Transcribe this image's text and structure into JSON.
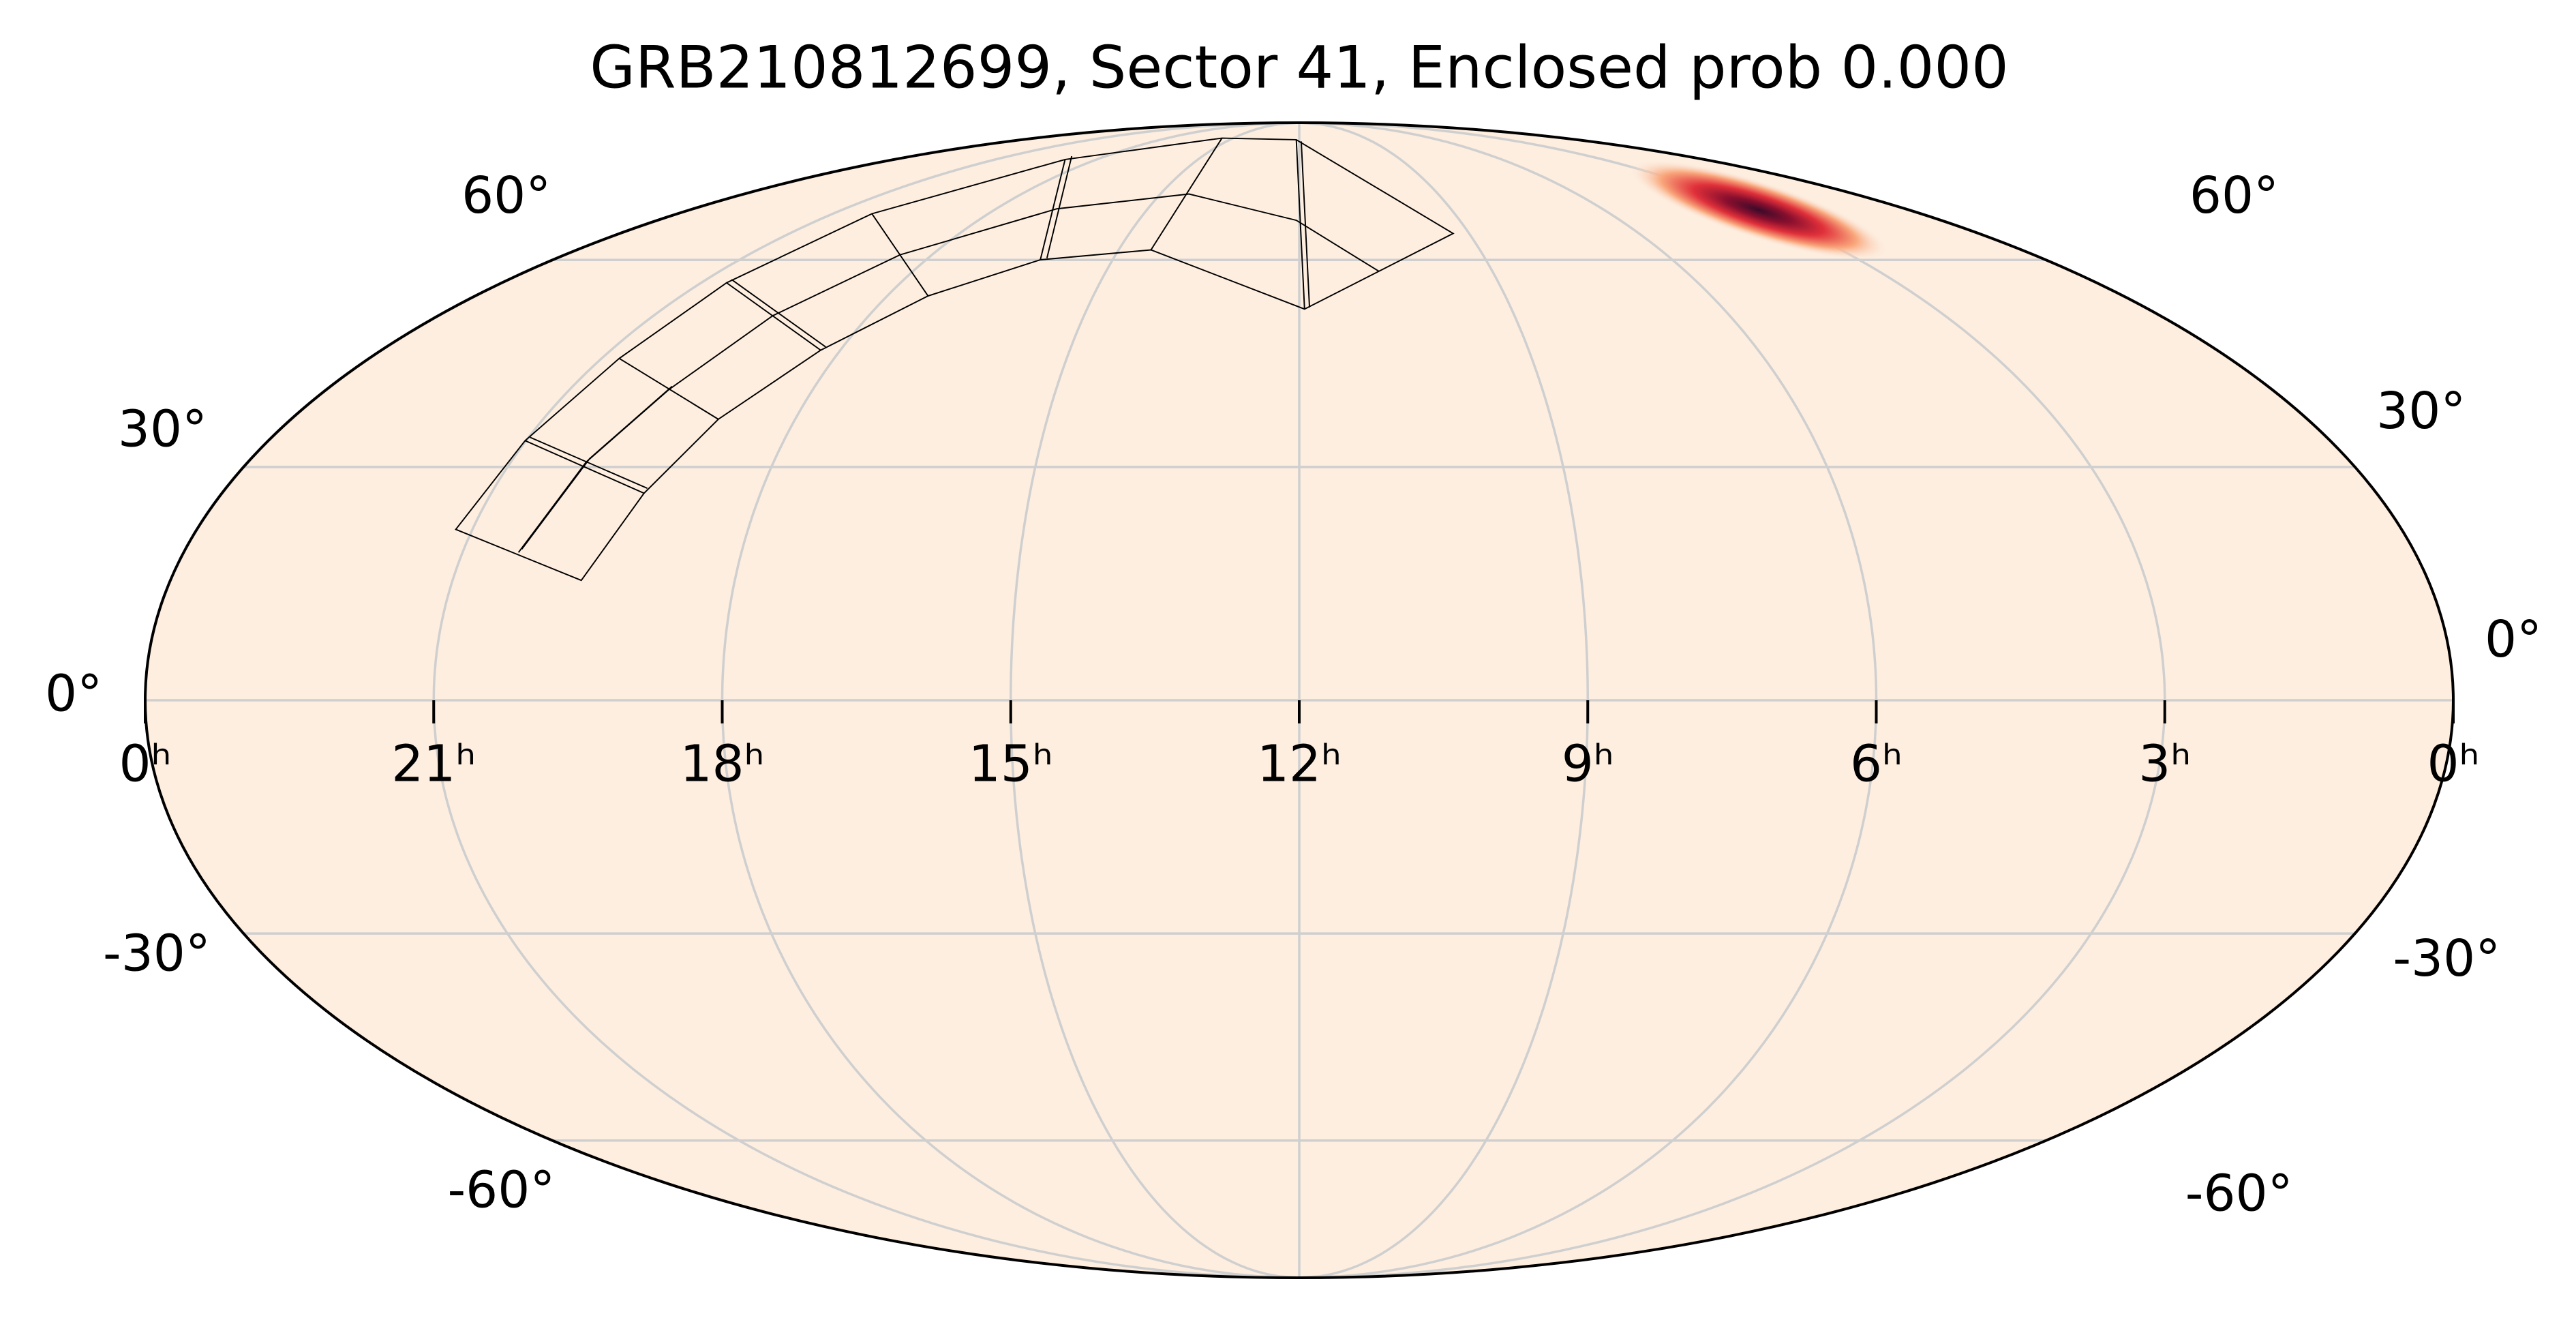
{
  "chart_data": {
    "type": "mollweide",
    "title": "GRB210812699, Sector 41, Enclosed prob 0.000",
    "xlim": [
      24,
      0
    ],
    "ylim": [
      -90,
      90
    ],
    "xticks": [
      {
        "value": 24,
        "label": "0ʰ"
      },
      {
        "value": 21,
        "label": "21ʰ"
      },
      {
        "value": 18,
        "label": "18ʰ"
      },
      {
        "value": 15,
        "label": "15ʰ"
      },
      {
        "value": 12,
        "label": "12ʰ"
      },
      {
        "value": 9,
        "label": "9ʰ"
      },
      {
        "value": 6,
        "label": "6ʰ"
      },
      {
        "value": 3,
        "label": "3ʰ"
      },
      {
        "value": 0,
        "label": "0ʰ"
      }
    ],
    "yticks": [
      {
        "value": 60,
        "label": "60°"
      },
      {
        "value": 30,
        "label": "30°"
      },
      {
        "value": 0,
        "label": "0°"
      },
      {
        "value": -30,
        "label": "-30°"
      },
      {
        "value": -60,
        "label": "-60°"
      }
    ],
    "grid": true,
    "color": "#fdeee0"
  }
}
